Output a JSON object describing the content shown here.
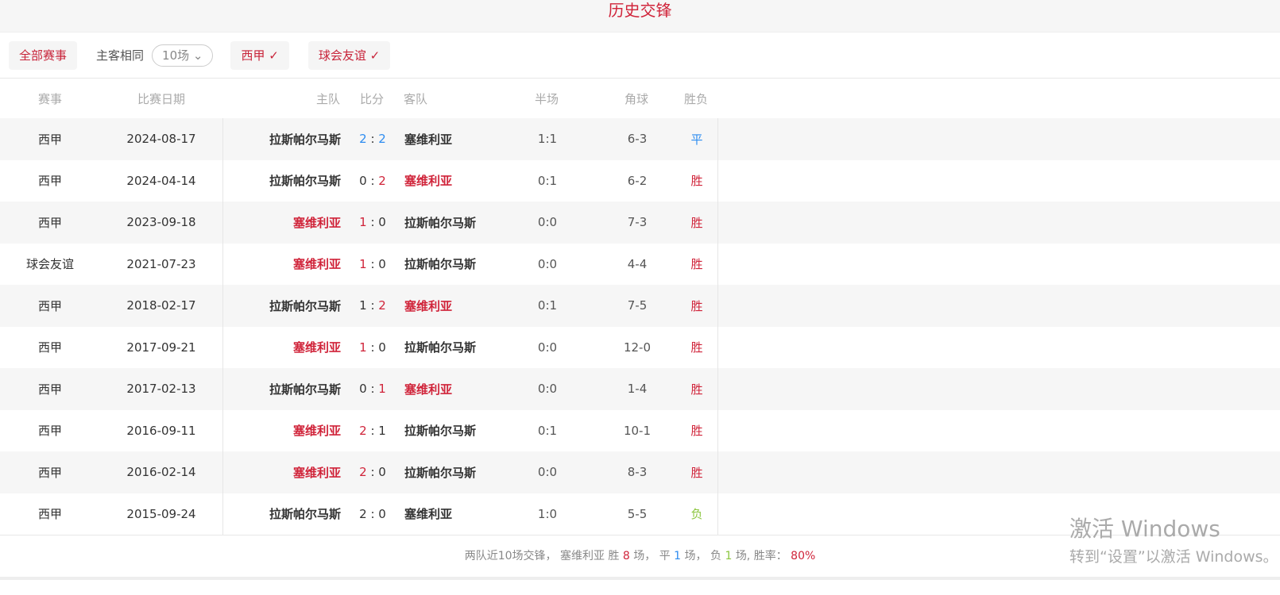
{
  "title": "历史交锋",
  "filters": {
    "all": "全部赛事",
    "same_label": "主客相同",
    "count": "10场",
    "f1": "西甲 ✓",
    "f2": "球会友谊 ✓"
  },
  "headers": [
    "赛事",
    "比赛日期",
    "主队",
    "比分",
    "客队",
    "半场",
    "角球",
    "胜负"
  ],
  "rows": [
    {
      "league": "西甲",
      "date": "2024-08-17",
      "home": "拉斯帕尔马斯",
      "hs": "2",
      "as": "2",
      "away": "塞维利亚",
      "half": "1:1",
      "corner": "6-3",
      "result": "平",
      "win": "draw"
    },
    {
      "league": "西甲",
      "date": "2024-04-14",
      "home": "拉斯帕尔马斯",
      "hs": "0",
      "as": "2",
      "away": "塞维利亚",
      "half": "0:1",
      "corner": "6-2",
      "result": "胜",
      "win": "away"
    },
    {
      "league": "西甲",
      "date": "2023-09-18",
      "home": "塞维利亚",
      "hs": "1",
      "as": "0",
      "away": "拉斯帕尔马斯",
      "half": "0:0",
      "corner": "7-3",
      "result": "胜",
      "win": "home"
    },
    {
      "league": "球会友谊",
      "date": "2021-07-23",
      "home": "塞维利亚",
      "hs": "1",
      "as": "0",
      "away": "拉斯帕尔马斯",
      "half": "0:0",
      "corner": "4-4",
      "result": "胜",
      "win": "home"
    },
    {
      "league": "西甲",
      "date": "2018-02-17",
      "home": "拉斯帕尔马斯",
      "hs": "1",
      "as": "2",
      "away": "塞维利亚",
      "half": "0:1",
      "corner": "7-5",
      "result": "胜",
      "win": "away"
    },
    {
      "league": "西甲",
      "date": "2017-09-21",
      "home": "塞维利亚",
      "hs": "1",
      "as": "0",
      "away": "拉斯帕尔马斯",
      "half": "0:0",
      "corner": "12-0",
      "result": "胜",
      "win": "home"
    },
    {
      "league": "西甲",
      "date": "2017-02-13",
      "home": "拉斯帕尔马斯",
      "hs": "0",
      "as": "1",
      "away": "塞维利亚",
      "half": "0:0",
      "corner": "1-4",
      "result": "胜",
      "win": "away"
    },
    {
      "league": "西甲",
      "date": "2016-09-11",
      "home": "塞维利亚",
      "hs": "2",
      "as": "1",
      "away": "拉斯帕尔马斯",
      "half": "0:1",
      "corner": "10-1",
      "result": "胜",
      "win": "home"
    },
    {
      "league": "西甲",
      "date": "2016-02-14",
      "home": "塞维利亚",
      "hs": "2",
      "as": "0",
      "away": "拉斯帕尔马斯",
      "half": "0:0",
      "corner": "8-3",
      "result": "胜",
      "win": "home"
    },
    {
      "league": "西甲",
      "date": "2015-09-24",
      "home": "拉斯帕尔马斯",
      "hs": "2",
      "as": "0",
      "away": "塞维利亚",
      "half": "1:0",
      "corner": "5-5",
      "result": "负",
      "win": "loss"
    }
  ],
  "summary": {
    "pre": "两队近10场交锋，  塞维利亚 胜",
    "w": "8",
    "t1": "场，  平",
    "d": "1",
    "t2": "场，  负",
    "l": "1",
    "t3": "场, 胜率：",
    "rate": "80%"
  },
  "watermark": {
    "l1": "激活 Windows",
    "l2": "转到“设置”以激活 Windows。"
  },
  "colors": {
    "accent": "#d0243a",
    "draw": "#2d8cf0",
    "loss": "#8cc63f"
  }
}
